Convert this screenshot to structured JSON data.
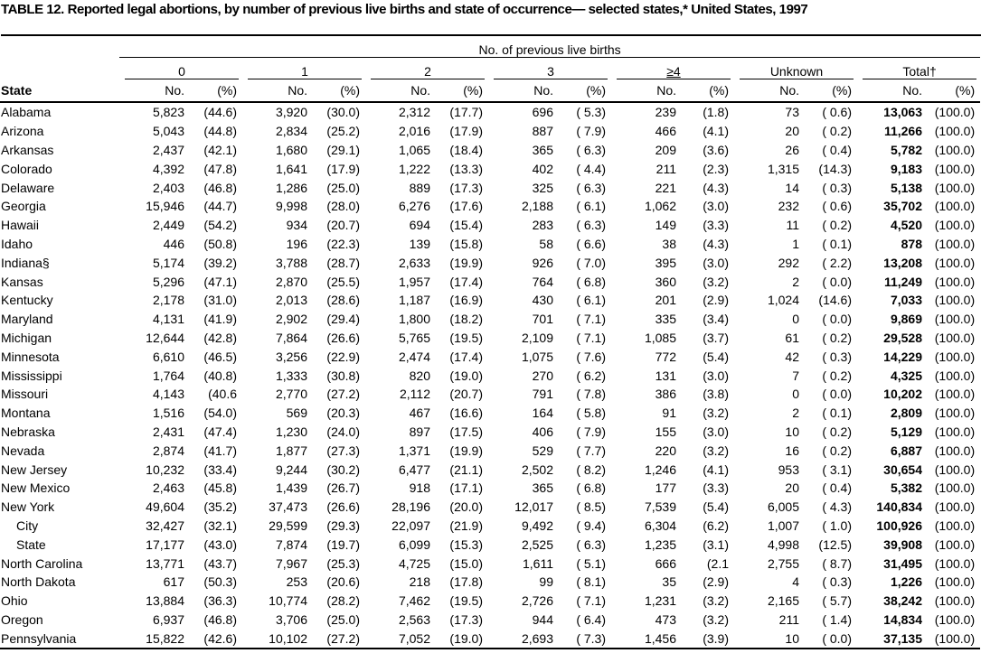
{
  "title": "TABLE 12. Reported legal abortions, by number of previous live births and state of occurrence— selected states,* United States, 1997",
  "table": {
    "spanner": "No. of previous live births",
    "groups": [
      "0",
      "1",
      "2",
      "3",
      "≥4",
      "Unknown",
      "Total†"
    ],
    "stub_header": "State",
    "subheaders": [
      "No.",
      "(%)"
    ],
    "rows": [
      [
        "Alabama",
        "5,823",
        "(44.6)",
        "3,920",
        "(30.0)",
        "2,312",
        "(17.7)",
        "696",
        "( 5.3)",
        "239",
        "(1.8)",
        "73",
        "( 0.6)",
        "13,063",
        "(100.0)"
      ],
      [
        "Arizona",
        "5,043",
        "(44.8)",
        "2,834",
        "(25.2)",
        "2,016",
        "(17.9)",
        "887",
        "( 7.9)",
        "466",
        "(4.1)",
        "20",
        "( 0.2)",
        "11,266",
        "(100.0)"
      ],
      [
        "Arkansas",
        "2,437",
        "(42.1)",
        "1,680",
        "(29.1)",
        "1,065",
        "(18.4)",
        "365",
        "( 6.3)",
        "209",
        "(3.6)",
        "26",
        "( 0.4)",
        "5,782",
        "(100.0)"
      ],
      [
        "Colorado",
        "4,392",
        "(47.8)",
        "1,641",
        "(17.9)",
        "1,222",
        "(13.3)",
        "402",
        "( 4.4)",
        "211",
        "(2.3)",
        "1,315",
        "(14.3)",
        "9,183",
        "(100.0)"
      ],
      [
        "Delaware",
        "2,403",
        "(46.8)",
        "1,286",
        "(25.0)",
        "889",
        "(17.3)",
        "325",
        "( 6.3)",
        "221",
        "(4.3)",
        "14",
        "( 0.3)",
        "5,138",
        "(100.0)"
      ],
      [
        "Georgia",
        "15,946",
        "(44.7)",
        "9,998",
        "(28.0)",
        "6,276",
        "(17.6)",
        "2,188",
        "( 6.1)",
        "1,062",
        "(3.0)",
        "232",
        "( 0.6)",
        "35,702",
        "(100.0)"
      ],
      [
        "Hawaii",
        "2,449",
        "(54.2)",
        "934",
        "(20.7)",
        "694",
        "(15.4)",
        "283",
        "( 6.3)",
        "149",
        "(3.3)",
        "11",
        "( 0.2)",
        "4,520",
        "(100.0)"
      ],
      [
        "Idaho",
        "446",
        "(50.8)",
        "196",
        "(22.3)",
        "139",
        "(15.8)",
        "58",
        "( 6.6)",
        "38",
        "(4.3)",
        "1",
        "( 0.1)",
        "878",
        "(100.0)"
      ],
      [
        "Indiana§",
        "5,174",
        "(39.2)",
        "3,788",
        "(28.7)",
        "2,633",
        "(19.9)",
        "926",
        "( 7.0)",
        "395",
        "(3.0)",
        "292",
        "( 2.2)",
        "13,208",
        "(100.0)"
      ],
      [
        "Kansas",
        "5,296",
        "(47.1)",
        "2,870",
        "(25.5)",
        "1,957",
        "(17.4)",
        "764",
        "( 6.8)",
        "360",
        "(3.2)",
        "2",
        "( 0.0)",
        "11,249",
        "(100.0)"
      ],
      [
        "Kentucky",
        "2,178",
        "(31.0)",
        "2,013",
        "(28.6)",
        "1,187",
        "(16.9)",
        "430",
        "( 6.1)",
        "201",
        "(2.9)",
        "1,024",
        "(14.6)",
        "7,033",
        "(100.0)"
      ],
      [
        "Maryland",
        "4,131",
        "(41.9)",
        "2,902",
        "(29.4)",
        "1,800",
        "(18.2)",
        "701",
        "( 7.1)",
        "335",
        "(3.4)",
        "0",
        "( 0.0)",
        "9,869",
        "(100.0)"
      ],
      [
        "Michigan",
        "12,644",
        "(42.8)",
        "7,864",
        "(26.6)",
        "5,765",
        "(19.5)",
        "2,109",
        "( 7.1)",
        "1,085",
        "(3.7)",
        "61",
        "( 0.2)",
        "29,528",
        "(100.0)"
      ],
      [
        "Minnesota",
        "6,610",
        "(46.5)",
        "3,256",
        "(22.9)",
        "2,474",
        "(17.4)",
        "1,075",
        "( 7.6)",
        "772",
        "(5.4)",
        "42",
        "( 0.3)",
        "14,229",
        "(100.0)"
      ],
      [
        "Mississippi",
        "1,764",
        "(40.8)",
        "1,333",
        "(30.8)",
        "820",
        "(19.0)",
        "270",
        "( 6.2)",
        "131",
        "(3.0)",
        "7",
        "( 0.2)",
        "4,325",
        "(100.0)"
      ],
      [
        "Missouri",
        "4,143",
        "(40.6",
        "2,770",
        "(27.2)",
        "2,112",
        "(20.7)",
        "791",
        "( 7.8)",
        "386",
        "(3.8)",
        "0",
        "( 0.0)",
        "10,202",
        "(100.0)"
      ],
      [
        "Montana",
        "1,516",
        "(54.0)",
        "569",
        "(20.3)",
        "467",
        "(16.6)",
        "164",
        "( 5.8)",
        "91",
        "(3.2)",
        "2",
        "( 0.1)",
        "2,809",
        "(100.0)"
      ],
      [
        "Nebraska",
        "2,431",
        "(47.4)",
        "1,230",
        "(24.0)",
        "897",
        "(17.5)",
        "406",
        "( 7.9)",
        "155",
        "(3.0)",
        "10",
        "( 0.2)",
        "5,129",
        "(100.0)"
      ],
      [
        "Nevada",
        "2,874",
        "(41.7)",
        "1,877",
        "(27.3)",
        "1,371",
        "(19.9)",
        "529",
        "( 7.7)",
        "220",
        "(3.2)",
        "16",
        "( 0.2)",
        "6,887",
        "(100.0)"
      ],
      [
        "New Jersey",
        "10,232",
        "(33.4)",
        "9,244",
        "(30.2)",
        "6,477",
        "(21.1)",
        "2,502",
        "( 8.2)",
        "1,246",
        "(4.1)",
        "953",
        "( 3.1)",
        "30,654",
        "(100.0)"
      ],
      [
        "New Mexico",
        "2,463",
        "(45.8)",
        "1,439",
        "(26.7)",
        "918",
        "(17.1)",
        "365",
        "( 6.8)",
        "177",
        "(3.3)",
        "20",
        "( 0.4)",
        "5,382",
        "(100.0)"
      ],
      [
        "New York",
        "49,604",
        "(35.2)",
        "37,473",
        "(26.6)",
        "28,196",
        "(20.0)",
        "12,017",
        "( 8.5)",
        "7,539",
        "(5.4)",
        "6,005",
        "( 4.3)",
        "140,834",
        "(100.0)"
      ],
      [
        "City",
        "32,427",
        "(32.1)",
        "29,599",
        "(29.3)",
        "22,097",
        "(21.9)",
        "9,492",
        "( 9.4)",
        "6,304",
        "(6.2)",
        "1,007",
        "( 1.0)",
        "100,926",
        "(100.0)"
      ],
      [
        "State",
        "17,177",
        "(43.0)",
        "7,874",
        "(19.7)",
        "6,099",
        "(15.3)",
        "2,525",
        "( 6.3)",
        "1,235",
        "(3.1)",
        "4,998",
        "(12.5)",
        "39,908",
        "(100.0)"
      ],
      [
        "North Carolina",
        "13,771",
        "(43.7)",
        "7,967",
        "(25.3)",
        "4,725",
        "(15.0)",
        "1,611",
        "( 5.1)",
        "666",
        "(2.1",
        "2,755",
        "( 8.7)",
        "31,495",
        "(100.0)"
      ],
      [
        "North Dakota",
        "617",
        "(50.3)",
        "253",
        "(20.6)",
        "218",
        "(17.8)",
        "99",
        "( 8.1)",
        "35",
        "(2.9)",
        "4",
        "( 0.3)",
        "1,226",
        "(100.0)"
      ],
      [
        "Ohio",
        "13,884",
        "(36.3)",
        "10,774",
        "(28.2)",
        "7,462",
        "(19.5)",
        "2,726",
        "( 7.1)",
        "1,231",
        "(3.2)",
        "2,165",
        "( 5.7)",
        "38,242",
        "(100.0)"
      ],
      [
        "Oregon",
        "6,937",
        "(46.8)",
        "3,706",
        "(25.0)",
        "2,563",
        "(17.3)",
        "944",
        "( 6.4)",
        "473",
        "(3.2)",
        "211",
        "( 1.4)",
        "14,834",
        "(100.0)"
      ],
      [
        "Pennsylvania",
        "15,822",
        "(42.6)",
        "10,102",
        "(27.2)",
        "7,052",
        "(19.0)",
        "2,693",
        "( 7.3)",
        "1,456",
        "(3.9)",
        "10",
        "( 0.0)",
        "37,135",
        "(100.0)"
      ]
    ]
  }
}
